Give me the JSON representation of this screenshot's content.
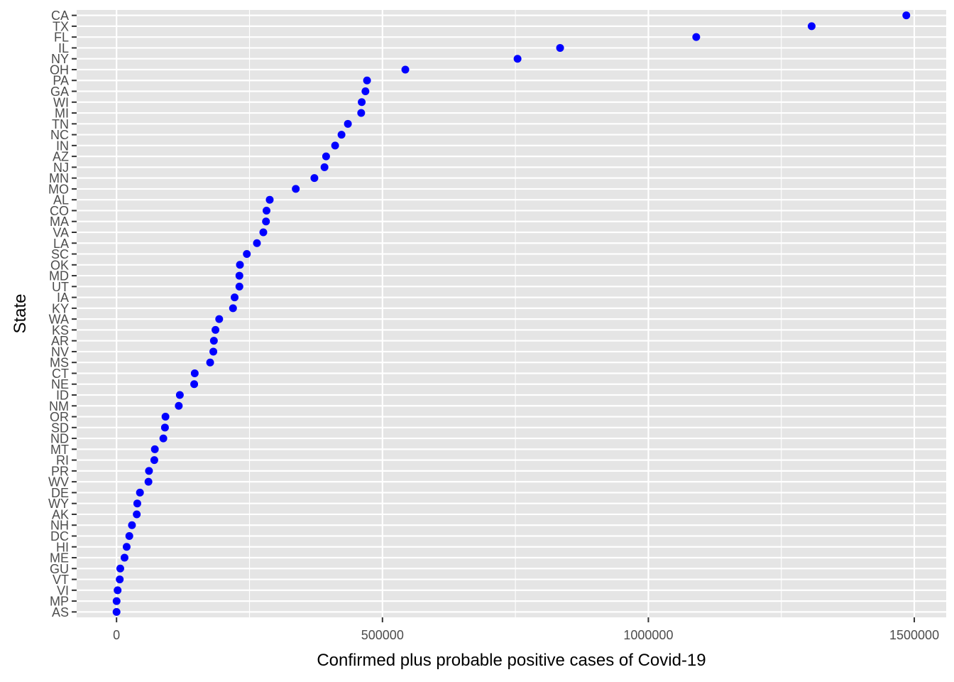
{
  "chart_data": {
    "type": "scatter",
    "xlabel": "Confirmed plus probable positive cases of Covid-19",
    "ylabel": "State",
    "xlim": [
      -75000,
      1560000
    ],
    "x_ticks": [
      0,
      500000,
      1000000,
      1500000
    ],
    "x_tick_labels": [
      "0",
      "500000",
      "1000000",
      "1500000"
    ],
    "grid": true,
    "point_color": "#0000ff",
    "panel_color": "#e5e5e5",
    "grid_color": "#ffffff",
    "categories": [
      "CA",
      "TX",
      "FL",
      "IL",
      "NY",
      "OH",
      "PA",
      "GA",
      "WI",
      "MI",
      "TN",
      "NC",
      "IN",
      "AZ",
      "NJ",
      "MN",
      "MO",
      "AL",
      "CO",
      "MA",
      "VA",
      "LA",
      "SC",
      "OK",
      "MD",
      "UT",
      "IA",
      "KY",
      "WA",
      "KS",
      "AR",
      "NV",
      "MS",
      "CT",
      "NE",
      "ID",
      "NM",
      "OR",
      "SD",
      "ND",
      "MT",
      "RI",
      "PR",
      "WV",
      "DE",
      "WY",
      "AK",
      "NH",
      "DC",
      "HI",
      "ME",
      "GU",
      "VT",
      "VI",
      "MP",
      "AS"
    ],
    "values": [
      1485000,
      1307000,
      1090000,
      834000,
      754000,
      543000,
      471000,
      468000,
      461000,
      460000,
      435000,
      423000,
      411000,
      394000,
      391000,
      372000,
      337000,
      288000,
      282000,
      281000,
      276000,
      264000,
      245000,
      232000,
      231000,
      231000,
      222000,
      219000,
      193000,
      186000,
      183000,
      182000,
      176000,
      147000,
      146000,
      119000,
      117000,
      92000,
      91000,
      88000,
      72000,
      71000,
      61000,
      60000,
      44000,
      39000,
      38000,
      29000,
      24000,
      19000,
      15000,
      7000,
      6000,
      2000,
      100,
      0
    ]
  }
}
